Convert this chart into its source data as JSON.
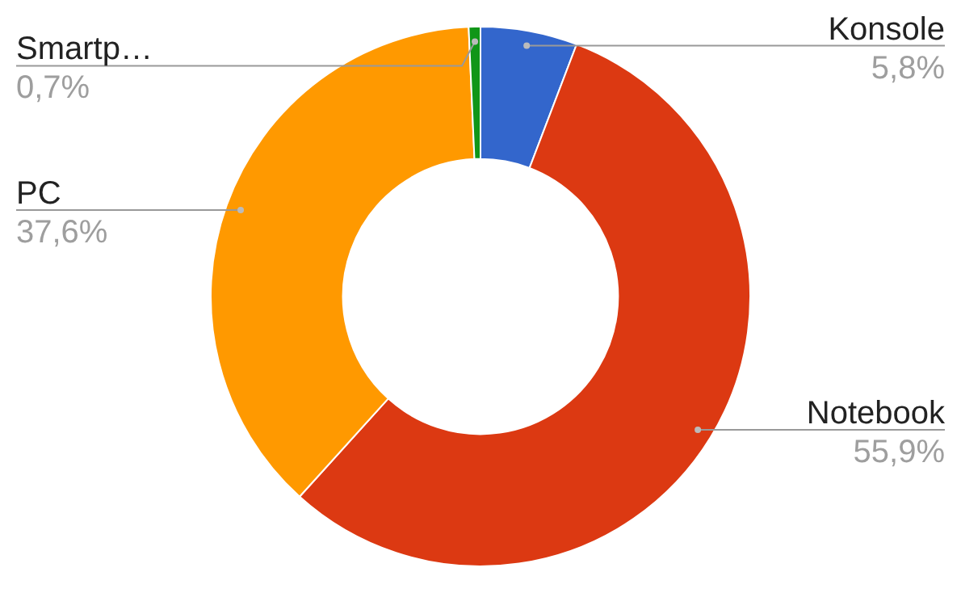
{
  "chart_data": {
    "type": "donut",
    "categories": [
      "Konsole",
      "Notebook",
      "PC",
      "Smartp…"
    ],
    "values": [
      5.8,
      55.9,
      37.6,
      0.7
    ],
    "colors": [
      "#3366cc",
      "#dc3912",
      "#ff9900",
      "#109618"
    ],
    "value_labels": [
      "5,8%",
      "55,9%",
      "37,6%",
      "0,7%"
    ],
    "legend": false
  }
}
